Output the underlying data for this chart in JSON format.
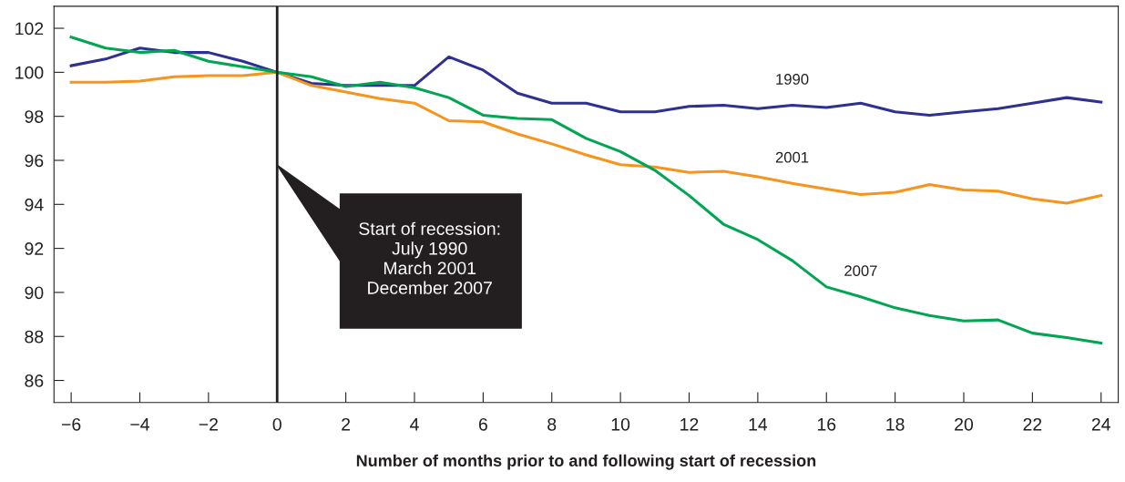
{
  "chart_data": {
    "type": "line",
    "xlabel": "Number of months prior to and following start of recession",
    "x": [
      -6,
      -5,
      -4,
      -3,
      -2,
      -1,
      0,
      1,
      2,
      3,
      4,
      5,
      6,
      7,
      8,
      9,
      10,
      11,
      12,
      13,
      14,
      15,
      16,
      17,
      18,
      19,
      20,
      21,
      22,
      23,
      24
    ],
    "series": [
      {
        "name": "1990",
        "color": "#2e3192",
        "values": [
          100.3,
          100.6,
          101.1,
          100.9,
          100.9,
          100.5,
          100.0,
          99.5,
          99.4,
          99.4,
          99.4,
          100.7,
          100.1,
          99.05,
          98.6,
          98.6,
          98.2,
          98.2,
          98.45,
          98.5,
          98.35,
          98.5,
          98.4,
          98.6,
          98.2,
          98.05,
          98.2,
          98.35,
          98.6,
          98.85,
          98.65
        ]
      },
      {
        "name": "2001",
        "color": "#f7941d",
        "values": [
          99.55,
          99.55,
          99.6,
          99.8,
          99.85,
          99.85,
          100.0,
          99.4,
          99.1,
          98.8,
          98.6,
          97.8,
          97.75,
          97.2,
          96.75,
          96.25,
          95.8,
          95.7,
          95.45,
          95.5,
          95.25,
          94.95,
          94.7,
          94.45,
          94.55,
          94.9,
          94.65,
          94.6,
          94.25,
          94.05,
          94.4
        ]
      },
      {
        "name": "2007",
        "color": "#00a651",
        "values": [
          101.6,
          101.1,
          100.9,
          101.0,
          100.5,
          100.25,
          100.0,
          99.8,
          99.35,
          99.55,
          99.3,
          98.85,
          98.05,
          97.9,
          97.85,
          97.0,
          96.4,
          95.55,
          94.4,
          93.1,
          92.4,
          91.45,
          90.25,
          89.8,
          89.3,
          88.95,
          88.7,
          88.75,
          88.15,
          87.95,
          87.7
        ]
      }
    ],
    "xlim": [
      -6.5,
      24.5
    ],
    "ylim": [
      85,
      103
    ],
    "xticks": [
      {
        "value": -6,
        "label": "−6"
      },
      {
        "value": -4,
        "label": "−4"
      },
      {
        "value": -2,
        "label": "−2"
      },
      0,
      2,
      4,
      6,
      8,
      10,
      12,
      14,
      16,
      18,
      20,
      22,
      24
    ],
    "yticks": [
      86,
      88,
      90,
      92,
      94,
      96,
      98,
      100,
      102
    ],
    "ref_lines": [
      {
        "axis": "x",
        "value": 0,
        "color": "#231f20"
      }
    ],
    "annotations": [
      "Start of recession:\nJuly 1990\nMarch 2001\nDecember 2007"
    ],
    "grid": false,
    "legend": false,
    "marker": "none",
    "line_style": "solid"
  }
}
